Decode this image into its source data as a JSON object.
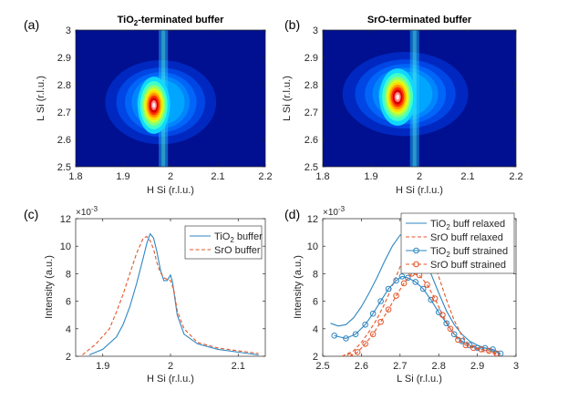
{
  "chart_data": [
    {
      "id": "a",
      "type": "heatmap",
      "panel_label": "(a)",
      "title_main": "TiO",
      "title_sub": "2",
      "title_rest": "-terminated buffer",
      "xlabel": "H Si (r.l.u.)",
      "ylabel": "L Si (r.l.u.)",
      "xlim": [
        1.8,
        2.2
      ],
      "ylim": [
        2.5,
        3.0
      ],
      "xticks": [
        "1.8",
        "1.9",
        "2",
        "2.1",
        "2.2"
      ],
      "yticks": [
        "2.5",
        "2.6",
        "2.7",
        "2.8",
        "2.9",
        "3"
      ],
      "peak": {
        "h": 1.965,
        "l": 2.725,
        "hw": 0.018,
        "lw": 0.055
      },
      "streak_h": 1.985,
      "colormap": "jet"
    },
    {
      "id": "b",
      "type": "heatmap",
      "panel_label": "(b)",
      "title_main": "SrO",
      "title_sub": "",
      "title_rest": "-terminated buffer",
      "xlabel": "H Si (r.l.u.)",
      "ylabel": "L Si (r.l.u.)",
      "xlim": [
        1.8,
        2.2
      ],
      "ylim": [
        2.5,
        3.0
      ],
      "xticks": [
        "1.8",
        "1.9",
        "2",
        "2.1",
        "2.2"
      ],
      "yticks": [
        "2.5",
        "2.6",
        "2.7",
        "2.8",
        "2.9",
        "3"
      ],
      "peak": {
        "h": 1.955,
        "l": 2.755,
        "hw": 0.02,
        "lw": 0.055
      },
      "streak_h": 1.99,
      "colormap": "jet"
    },
    {
      "id": "c",
      "type": "line",
      "panel_label": "(c)",
      "xlabel": "H Si (r.l.u.)",
      "ylabel": "Intensity (a.u.)",
      "exponent": "×10",
      "exponent_power": "-3",
      "xlim": [
        1.86,
        2.14
      ],
      "ylim": [
        2,
        12
      ],
      "xticks": [
        1.9,
        2.0,
        2.1
      ],
      "xtick_labels": [
        "1.9",
        "2",
        "2.1"
      ],
      "yticks": [
        2,
        4,
        6,
        8,
        10,
        12
      ],
      "legend": [
        {
          "name_main": "TiO",
          "name_sub": "2",
          "name_rest": " buffer"
        },
        {
          "name_main": "SrO buffer",
          "name_sub": "",
          "name_rest": ""
        }
      ],
      "series": [
        {
          "name": "TiO2 buffer",
          "color": "#2e86c1",
          "dash": "solid",
          "x": [
            1.88,
            1.9,
            1.92,
            1.93,
            1.94,
            1.95,
            1.96,
            1.965,
            1.97,
            1.975,
            1.98,
            1.985,
            1.99,
            1.995,
            2.0,
            2.003,
            2.01,
            2.02,
            2.04,
            2.07,
            2.1,
            2.13
          ],
          "y": [
            2.1,
            2.5,
            3.4,
            4.3,
            5.6,
            7.3,
            9.2,
            10.2,
            10.9,
            10.6,
            9.6,
            8.3,
            7.5,
            7.5,
            7.9,
            7.4,
            5.0,
            3.6,
            2.9,
            2.5,
            2.3,
            2.1
          ]
        },
        {
          "name": "SrO buffer",
          "color": "#e4552a",
          "dash": "dashed",
          "x": [
            1.87,
            1.89,
            1.91,
            1.92,
            1.93,
            1.94,
            1.95,
            1.96,
            1.965,
            1.97,
            1.975,
            1.98,
            1.985,
            1.99,
            1.995,
            2.0,
            2.005,
            2.01,
            2.02,
            2.04,
            2.07,
            2.1,
            2.13
          ],
          "y": [
            2.1,
            2.9,
            4.0,
            5.2,
            6.5,
            8.0,
            9.5,
            10.6,
            10.7,
            10.4,
            9.8,
            8.8,
            8.1,
            7.7,
            7.6,
            7.5,
            6.8,
            5.3,
            4.0,
            3.0,
            2.6,
            2.4,
            2.2
          ]
        }
      ]
    },
    {
      "id": "d",
      "type": "line",
      "panel_label": "(d)",
      "xlabel": "L Si (r.l.u.)",
      "ylabel": "Intensity (a.u.)",
      "exponent": "×10",
      "exponent_power": "-3",
      "xlim": [
        2.5,
        3.0
      ],
      "ylim": [
        2,
        12
      ],
      "xticks": [
        2.5,
        2.6,
        2.7,
        2.8,
        2.9,
        3.0
      ],
      "xtick_labels": [
        "2.5",
        "2.6",
        "2.7",
        "2.8",
        "2.9",
        "3"
      ],
      "yticks": [
        2,
        4,
        6,
        8,
        10,
        12
      ],
      "legend": [
        {
          "name_main": "TiO",
          "name_sub": "2",
          "name_rest": " buff relaxed"
        },
        {
          "name_main": "SrO buff relaxed",
          "name_sub": "",
          "name_rest": ""
        },
        {
          "name_main": "TiO",
          "name_sub": "2",
          "name_rest": " buff strained"
        },
        {
          "name_main": "SrO buff strained",
          "name_sub": "",
          "name_rest": ""
        }
      ],
      "series": [
        {
          "name": "TiO2 buff relaxed",
          "color": "#2e86c1",
          "dash": "solid",
          "marker": "none",
          "x": [
            2.52,
            2.54,
            2.56,
            2.58,
            2.6,
            2.62,
            2.64,
            2.66,
            2.68,
            2.7,
            2.72,
            2.74,
            2.76,
            2.78,
            2.8,
            2.82,
            2.84,
            2.86,
            2.88,
            2.9,
            2.92,
            2.94,
            2.96
          ],
          "y": [
            4.4,
            4.2,
            4.3,
            4.8,
            5.6,
            6.6,
            7.7,
            8.9,
            10.0,
            10.8,
            10.9,
            10.3,
            9.3,
            8.0,
            6.6,
            5.3,
            4.3,
            3.6,
            3.1,
            2.8,
            2.6,
            2.4,
            2.2
          ]
        },
        {
          "name": "SrO buff relaxed",
          "color": "#e4552a",
          "dash": "dashed",
          "marker": "none",
          "x": [
            2.55,
            2.58,
            2.6,
            2.62,
            2.64,
            2.66,
            2.68,
            2.7,
            2.72,
            2.74,
            2.76,
            2.78,
            2.8,
            2.82,
            2.84,
            2.86,
            2.88,
            2.9,
            2.92,
            2.94,
            2.96
          ],
          "y": [
            2.0,
            2.4,
            3.0,
            3.8,
            4.7,
            5.8,
            7.1,
            8.5,
            9.8,
            10.6,
            10.4,
            9.3,
            7.8,
            6.1,
            4.6,
            3.5,
            2.8,
            2.5,
            2.3,
            2.2,
            2.1
          ]
        },
        {
          "name": "TiO2 buff strained",
          "color": "#2e86c1",
          "dash": "solid",
          "marker": "circle",
          "x": [
            2.53,
            2.56,
            2.585,
            2.61,
            2.63,
            2.65,
            2.67,
            2.69,
            2.705,
            2.72,
            2.74,
            2.76,
            2.78,
            2.8,
            2.82,
            2.84,
            2.86,
            2.88,
            2.9,
            2.92,
            2.94,
            2.96
          ],
          "y": [
            3.5,
            3.3,
            3.6,
            4.3,
            5.1,
            6.0,
            6.9,
            7.5,
            7.8,
            7.7,
            7.4,
            6.9,
            6.1,
            5.2,
            4.4,
            3.6,
            3.1,
            2.8,
            2.6,
            2.6,
            2.5,
            2.2
          ]
        },
        {
          "name": "SrO buff strained",
          "color": "#e4552a",
          "dash": "dashed",
          "marker": "circle",
          "x": [
            2.57,
            2.59,
            2.61,
            2.63,
            2.65,
            2.67,
            2.69,
            2.71,
            2.73,
            2.75,
            2.77,
            2.79,
            2.81,
            2.83,
            2.85,
            2.87,
            2.89,
            2.91,
            2.93,
            2.95
          ],
          "y": [
            2.0,
            2.3,
            2.9,
            3.6,
            4.5,
            5.4,
            6.4,
            7.3,
            8.0,
            7.9,
            7.2,
            6.2,
            5.0,
            4.0,
            3.2,
            2.8,
            2.6,
            2.5,
            2.4,
            2.2
          ]
        }
      ]
    }
  ]
}
